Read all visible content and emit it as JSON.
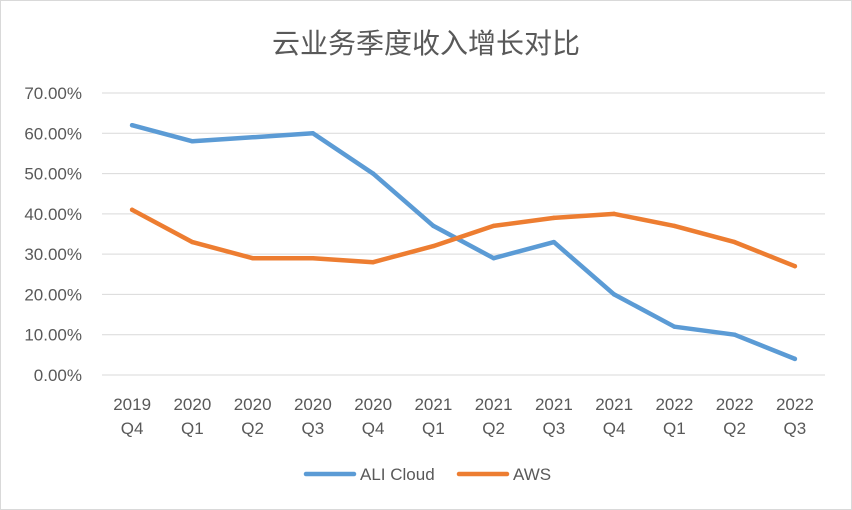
{
  "chart_data": {
    "type": "line",
    "title": "云业务季度收入增长对比",
    "categories": [
      [
        "2019",
        "Q4"
      ],
      [
        "2020",
        "Q1"
      ],
      [
        "2020",
        "Q2"
      ],
      [
        "2020",
        "Q3"
      ],
      [
        "2020",
        "Q4"
      ],
      [
        "2021",
        "Q1"
      ],
      [
        "2021",
        "Q2"
      ],
      [
        "2021",
        "Q3"
      ],
      [
        "2021",
        "Q4"
      ],
      [
        "2022",
        "Q1"
      ],
      [
        "2022",
        "Q2"
      ],
      [
        "2022",
        "Q3"
      ]
    ],
    "series": [
      {
        "name": "ALI Cloud",
        "color": "#5b9bd5",
        "values": [
          0.62,
          0.58,
          0.59,
          0.6,
          0.5,
          0.37,
          0.29,
          0.33,
          0.2,
          0.12,
          0.1,
          0.04
        ]
      },
      {
        "name": "AWS",
        "color": "#ed7d31",
        "values": [
          0.41,
          0.33,
          0.29,
          0.29,
          0.28,
          0.32,
          0.37,
          0.39,
          0.4,
          0.37,
          0.33,
          0.27
        ]
      }
    ],
    "ylim": [
      0,
      0.7
    ],
    "yticks": [
      "0.00%",
      "10.00%",
      "20.00%",
      "30.00%",
      "40.00%",
      "50.00%",
      "60.00%",
      "70.00%"
    ],
    "xlabel": "",
    "ylabel": "",
    "grid": true,
    "legend_position": "bottom",
    "gridline_color": "#d9d9d9",
    "text_color": "#595959"
  }
}
